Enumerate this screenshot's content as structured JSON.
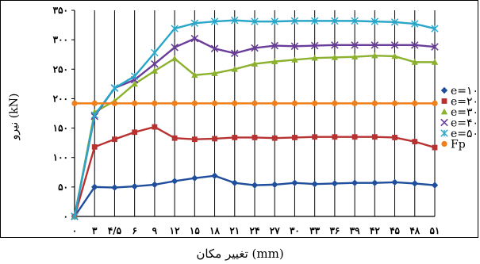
{
  "chart_data": {
    "type": "line",
    "xlabel": "تغییر مکان (mm)",
    "ylabel": "نیرو (kN)",
    "title": "",
    "x_ticks": [
      "۰",
      "۳",
      "۴/۵",
      "۶",
      "۹",
      "۱۲",
      "۱۵",
      "۱۸",
      "۲۱",
      "۲۴",
      "۲۷",
      "۳۰",
      "۳۳",
      "۳۶",
      "۳۹",
      "۴۲",
      "۴۵",
      "۴۸",
      "۵۱"
    ],
    "x": [
      0,
      3,
      4.5,
      6,
      9,
      12,
      15,
      18,
      21,
      24,
      27,
      30,
      33,
      36,
      39,
      42,
      45,
      48,
      51
    ],
    "y_ticks": [
      "۰",
      "۵۰",
      "۱۰۰",
      "۱۵۰",
      "۲۰۰",
      "۲۵۰",
      "۳۰۰",
      "۳۵۰"
    ],
    "ylim": [
      0,
      350
    ],
    "grid_vertical": true,
    "legend_position": "right",
    "series": [
      {
        "name": "e=۱۰",
        "color": "#1f4e9c",
        "marker": "diamond",
        "values": [
          0,
          50,
          49,
          51,
          54,
          60,
          65,
          69,
          57,
          53,
          54,
          57,
          55,
          56,
          57,
          57,
          58,
          56,
          53
        ]
      },
      {
        "name": "e=۲۰",
        "color": "#b83232",
        "marker": "square",
        "values": [
          0,
          118,
          131,
          143,
          152,
          133,
          131,
          132,
          134,
          134,
          133,
          134,
          135,
          135,
          135,
          135,
          134,
          127,
          117
        ]
      },
      {
        "name": "e=۳۰",
        "color": "#8bb12d",
        "marker": "triangle",
        "values": [
          0,
          177,
          196,
          225,
          247,
          268,
          240,
          243,
          250,
          259,
          263,
          266,
          269,
          270,
          271,
          273,
          272,
          262,
          262
        ]
      },
      {
        "name": "e=۴۰",
        "color": "#6a3d9a",
        "marker": "x",
        "values": [
          0,
          170,
          218,
          232,
          259,
          287,
          302,
          285,
          277,
          286,
          290,
          289,
          290,
          291,
          291,
          291,
          291,
          291,
          288
        ]
      },
      {
        "name": "e=۵۰",
        "color": "#2aa6c9",
        "marker": "star",
        "values": [
          0,
          172,
          218,
          238,
          278,
          319,
          328,
          331,
          333,
          331,
          331,
          332,
          332,
          332,
          332,
          331,
          330,
          327,
          319
        ]
      },
      {
        "name": "Fp",
        "color": "#f07f1a",
        "marker": "circle",
        "values": [
          192,
          192,
          192,
          192,
          192,
          192,
          192,
          192,
          192,
          192,
          192,
          192,
          192,
          192,
          192,
          192,
          192,
          192,
          192
        ]
      }
    ]
  }
}
